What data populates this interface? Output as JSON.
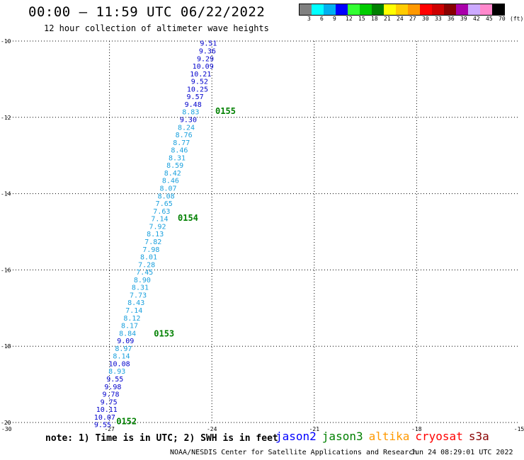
{
  "title": "00:00 – 11:59 UTC 06/22/2022",
  "subtitle": "12 hour collection of altimeter wave heights",
  "legend": {
    "colors": [
      "#808080",
      "#00ffff",
      "#00b0f0",
      "#0000ff",
      "#33ff33",
      "#00cc00",
      "#008000",
      "#ffff00",
      "#ffcc00",
      "#ff9900",
      "#ff0000",
      "#cc0000",
      "#880000",
      "#aa00aa",
      "#ccaaff",
      "#ff88cc",
      "#000000"
    ],
    "labels": [
      "3",
      "6",
      "9",
      "12",
      "15",
      "18",
      "21",
      "24",
      "27",
      "30",
      "33",
      "36",
      "39",
      "42",
      "45",
      "70"
    ],
    "unit": "(ft)"
  },
  "note": "note: 1) Time is in UTC; 2) SWH is in feet",
  "satellites": [
    {
      "name": "jason2",
      "color": "#0000ff"
    },
    {
      "name": "jason3",
      "color": "#008000"
    },
    {
      "name": "altika",
      "color": "#ff9900"
    },
    {
      "name": "cryosat",
      "color": "#ff0000"
    },
    {
      "name": "s3a",
      "color": "#880000"
    }
  ],
  "credit": "NOAA/NESDIS Center for Satellite Applications and Research",
  "generated": "Jun 24 08:29:01 UTC 2022",
  "chart_data": {
    "type": "scatter",
    "xlim": [
      -30,
      -15
    ],
    "ylim": [
      -20,
      -10
    ],
    "x_ticks": [
      "-30",
      "-27",
      "-24",
      "-21",
      "-18",
      "-15"
    ],
    "y_ticks": [
      "-10",
      "-12",
      "-14",
      "-16",
      "-18",
      "-20"
    ],
    "grid": true,
    "time_labels": [
      {
        "text": "0155",
        "lon": -23.9,
        "lat": -11.82
      },
      {
        "text": "0154",
        "lon": -25.0,
        "lat": -14.62
      },
      {
        "text": "0153",
        "lon": -25.7,
        "lat": -17.65
      },
      {
        "text": "0152",
        "lon": -26.8,
        "lat": -19.95
      }
    ],
    "points": [
      {
        "v": "9.51",
        "lon": -24.1,
        "lat": -10.05,
        "c": "#0000cc"
      },
      {
        "v": "9.36",
        "lon": -24.13,
        "lat": -10.25,
        "c": "#0000cc"
      },
      {
        "v": "9.29",
        "lon": -24.19,
        "lat": -10.45,
        "c": "#0000cc"
      },
      {
        "v": "10.09",
        "lon": -24.26,
        "lat": -10.65,
        "c": "#0000cc"
      },
      {
        "v": "10.21",
        "lon": -24.33,
        "lat": -10.85,
        "c": "#0000cc"
      },
      {
        "v": "9.52",
        "lon": -24.36,
        "lat": -11.05,
        "c": "#0000cc"
      },
      {
        "v": "10.25",
        "lon": -24.42,
        "lat": -11.25,
        "c": "#0000cc"
      },
      {
        "v": "9.57",
        "lon": -24.49,
        "lat": -11.45,
        "c": "#0000cc"
      },
      {
        "v": "9.48",
        "lon": -24.55,
        "lat": -11.65,
        "c": "#0000cc"
      },
      {
        "v": "8.83",
        "lon": -24.62,
        "lat": -11.85,
        "c": "#1aa0dd"
      },
      {
        "v": "9.30",
        "lon": -24.69,
        "lat": -12.05,
        "c": "#0000cc"
      },
      {
        "v": "8.24",
        "lon": -24.75,
        "lat": -12.25,
        "c": "#1aa0dd"
      },
      {
        "v": "8.76",
        "lon": -24.82,
        "lat": -12.45,
        "c": "#1aa0dd"
      },
      {
        "v": "8.77",
        "lon": -24.89,
        "lat": -12.65,
        "c": "#1aa0dd"
      },
      {
        "v": "8.46",
        "lon": -24.95,
        "lat": -12.85,
        "c": "#1aa0dd"
      },
      {
        "v": "8.31",
        "lon": -25.02,
        "lat": -13.05,
        "c": "#1aa0dd"
      },
      {
        "v": "8.59",
        "lon": -25.08,
        "lat": -13.25,
        "c": "#1aa0dd"
      },
      {
        "v": "8.42",
        "lon": -25.15,
        "lat": -13.45,
        "c": "#1aa0dd"
      },
      {
        "v": "8.46",
        "lon": -25.21,
        "lat": -13.65,
        "c": "#1aa0dd"
      },
      {
        "v": "8.07",
        "lon": -25.28,
        "lat": -13.85,
        "c": "#1aa0dd"
      },
      {
        "v": "8.08",
        "lon": -25.34,
        "lat": -14.05,
        "c": "#1aa0dd"
      },
      {
        "v": "7.65",
        "lon": -25.4,
        "lat": -14.25,
        "c": "#1aa0dd"
      },
      {
        "v": "7.63",
        "lon": -25.47,
        "lat": -14.45,
        "c": "#1aa0dd"
      },
      {
        "v": "7.14",
        "lon": -25.53,
        "lat": -14.65,
        "c": "#1aa0dd"
      },
      {
        "v": "7.92",
        "lon": -25.59,
        "lat": -14.85,
        "c": "#1aa0dd"
      },
      {
        "v": "8.13",
        "lon": -25.66,
        "lat": -15.05,
        "c": "#1aa0dd"
      },
      {
        "v": "7.82",
        "lon": -25.72,
        "lat": -15.25,
        "c": "#1aa0dd"
      },
      {
        "v": "7.98",
        "lon": -25.78,
        "lat": -15.45,
        "c": "#1aa0dd"
      },
      {
        "v": "8.01",
        "lon": -25.85,
        "lat": -15.65,
        "c": "#1aa0dd"
      },
      {
        "v": "7.28",
        "lon": -25.91,
        "lat": -15.85,
        "c": "#1aa0dd"
      },
      {
        "v": "7.45",
        "lon": -25.97,
        "lat": -16.05,
        "c": "#1aa0dd"
      },
      {
        "v": "8.90",
        "lon": -26.04,
        "lat": -16.25,
        "c": "#1aa0dd"
      },
      {
        "v": "8.31",
        "lon": -26.1,
        "lat": -16.45,
        "c": "#1aa0dd"
      },
      {
        "v": "7.73",
        "lon": -26.16,
        "lat": -16.65,
        "c": "#1aa0dd"
      },
      {
        "v": "8.43",
        "lon": -26.22,
        "lat": -16.85,
        "c": "#1aa0dd"
      },
      {
        "v": "7.14",
        "lon": -26.28,
        "lat": -17.05,
        "c": "#1aa0dd"
      },
      {
        "v": "8.12",
        "lon": -26.34,
        "lat": -17.25,
        "c": "#1aa0dd"
      },
      {
        "v": "8.17",
        "lon": -26.41,
        "lat": -17.45,
        "c": "#1aa0dd"
      },
      {
        "v": "8.84",
        "lon": -26.47,
        "lat": -17.65,
        "c": "#1aa0dd"
      },
      {
        "v": "9.09",
        "lon": -26.53,
        "lat": -17.85,
        "c": "#0000cc"
      },
      {
        "v": "8.97",
        "lon": -26.59,
        "lat": -18.05,
        "c": "#1aa0dd"
      },
      {
        "v": "8.14",
        "lon": -26.65,
        "lat": -18.25,
        "c": "#1aa0dd"
      },
      {
        "v": "10.08",
        "lon": -26.71,
        "lat": -18.45,
        "c": "#0000cc"
      },
      {
        "v": "8.93",
        "lon": -26.78,
        "lat": -18.65,
        "c": "#1aa0dd"
      },
      {
        "v": "9.55",
        "lon": -26.84,
        "lat": -18.85,
        "c": "#0000cc"
      },
      {
        "v": "9.98",
        "lon": -26.9,
        "lat": -19.05,
        "c": "#0000cc"
      },
      {
        "v": "9.78",
        "lon": -26.96,
        "lat": -19.25,
        "c": "#0000cc"
      },
      {
        "v": "9.75",
        "lon": -27.02,
        "lat": -19.45,
        "c": "#0000cc"
      },
      {
        "v": "10.11",
        "lon": -27.08,
        "lat": -19.65,
        "c": "#0000cc"
      },
      {
        "v": "10.07",
        "lon": -27.14,
        "lat": -19.85,
        "c": "#0000cc"
      },
      {
        "v": "9.55",
        "lon": -27.2,
        "lat": -20.05,
        "c": "#0000cc"
      }
    ]
  }
}
